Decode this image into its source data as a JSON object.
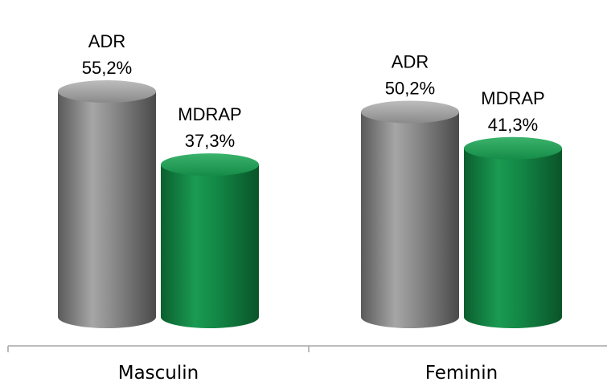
{
  "chart_data": {
    "type": "bar",
    "style": "3d-cylinder",
    "categories": [
      "Masculin",
      "Feminin"
    ],
    "series": [
      {
        "name": "ADR",
        "values": [
          55.2,
          50.2
        ],
        "labels": [
          "55,2%",
          "50,2%"
        ],
        "color": "#8a8a8a"
      },
      {
        "name": "MDRAP",
        "values": [
          37.3,
          41.3
        ],
        "labels": [
          "37,3%",
          "41,3%"
        ],
        "color": "#138a47"
      }
    ],
    "unit": "%",
    "grid": false,
    "legend": "none",
    "data_labels": "series-name-and-value"
  }
}
